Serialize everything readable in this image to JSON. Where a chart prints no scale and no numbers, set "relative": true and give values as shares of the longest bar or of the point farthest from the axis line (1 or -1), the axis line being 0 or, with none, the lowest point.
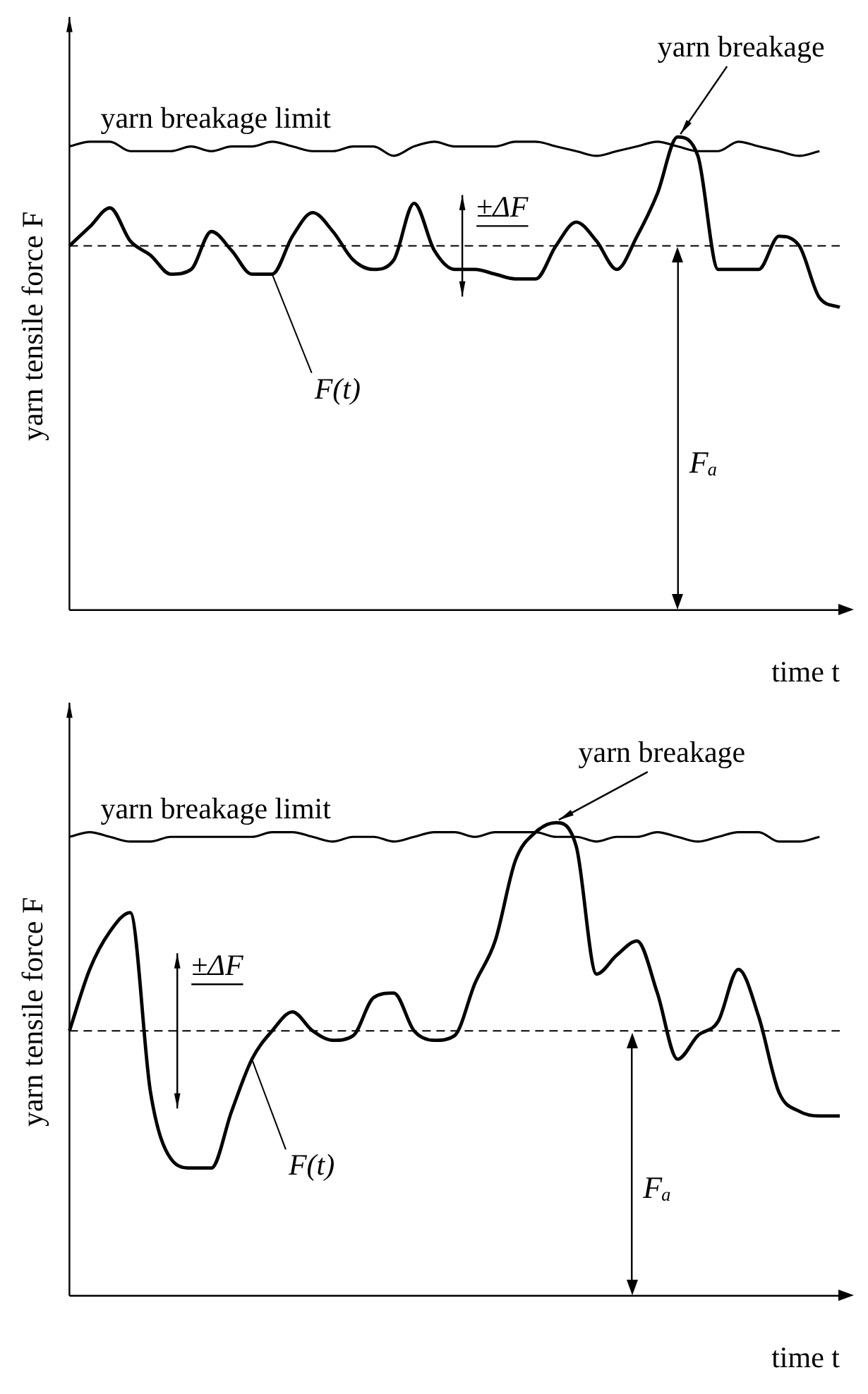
{
  "chart_data": [
    {
      "type": "line",
      "relative": true,
      "xlabel": "time t",
      "ylabel": "yarn tensile force F",
      "legend": false,
      "marker": "none",
      "grid": false,
      "categories": [
        null,
        null,
        null,
        null,
        null,
        null,
        null,
        null,
        null,
        null,
        null,
        null,
        null,
        null,
        null,
        null,
        null,
        null,
        null,
        null,
        null,
        null,
        null,
        null,
        null,
        null,
        null,
        null,
        null,
        null,
        null,
        null,
        null,
        null,
        null,
        null,
        null,
        null,
        null
      ],
      "series": [
        {
          "name": "yarn breakage limit",
          "color": "#000000",
          "values": [
            0.98,
            0.99,
            0.99,
            0.97,
            0.97,
            0.97,
            0.98,
            0.97,
            0.98,
            0.98,
            0.99,
            0.98,
            0.97,
            0.97,
            0.98,
            0.98,
            0.96,
            0.98,
            0.99,
            0.98,
            0.98,
            0.98,
            0.99,
            0.99,
            0.98,
            0.97,
            0.96,
            0.97,
            0.98,
            0.99,
            0.98,
            0.97,
            0.97,
            0.99,
            0.98,
            0.97,
            0.96,
            0.97,
            null
          ]
        },
        {
          "name": "F(t)",
          "color": "#000000",
          "values": [
            0.77,
            0.81,
            0.85,
            0.78,
            0.75,
            0.71,
            0.72,
            0.8,
            0.76,
            0.71,
            0.71,
            0.79,
            0.84,
            0.8,
            0.74,
            0.72,
            0.74,
            0.86,
            0.76,
            0.72,
            0.72,
            0.71,
            0.7,
            0.7,
            0.77,
            0.82,
            0.78,
            0.72,
            0.79,
            0.88,
            1,
            0.96,
            0.72,
            0.72,
            0.72,
            0.79,
            0.77,
            0.66,
            0.64
          ]
        }
      ],
      "ref_lines": [
        {
          "axis": "y",
          "value": 0.77,
          "line_style": "dashed"
        }
      ],
      "annotations": [
        "yarn breakage",
        "±ΔF",
        "Fₐ"
      ]
    },
    {
      "type": "line",
      "relative": true,
      "xlabel": "time t",
      "ylabel": "yarn tensile force F",
      "legend": false,
      "marker": "none",
      "grid": false,
      "categories": [
        null,
        null,
        null,
        null,
        null,
        null,
        null,
        null,
        null,
        null,
        null,
        null,
        null,
        null,
        null,
        null,
        null,
        null,
        null,
        null,
        null,
        null,
        null,
        null,
        null,
        null,
        null,
        null,
        null,
        null,
        null,
        null,
        null,
        null,
        null,
        null,
        null,
        null,
        null
      ],
      "series": [
        {
          "name": "yarn breakage limit",
          "color": "#000000",
          "values": [
            0.97,
            0.98,
            0.97,
            0.96,
            0.96,
            0.97,
            0.97,
            0.97,
            0.97,
            0.97,
            0.98,
            0.98,
            0.97,
            0.96,
            0.97,
            0.97,
            0.96,
            0.97,
            0.98,
            0.98,
            0.97,
            0.98,
            0.98,
            0.98,
            0.97,
            0.97,
            0.96,
            0.97,
            0.97,
            0.98,
            0.97,
            0.96,
            0.97,
            0.98,
            0.98,
            0.96,
            0.96,
            0.97,
            null
          ]
        },
        {
          "name": "F(t)",
          "color": "#000000",
          "values": [
            0.56,
            0.69,
            0.77,
            0.81,
            0.43,
            0.29,
            0.27,
            0.27,
            0.39,
            0.5,
            0.56,
            0.6,
            0.56,
            0.54,
            0.55,
            0.63,
            0.64,
            0.56,
            0.54,
            0.55,
            0.66,
            0.75,
            0.92,
            0.98,
            1,
            0.95,
            0.68,
            0.72,
            0.75,
            0.64,
            0.5,
            0.55,
            0.58,
            0.69,
            0.59,
            0.43,
            0.39,
            0.38,
            0.38
          ]
        }
      ],
      "ref_lines": [
        {
          "axis": "y",
          "value": 0.56,
          "line_style": "dashed"
        }
      ],
      "annotations": [
        "yarn breakage",
        "±ΔF",
        "Fₐ"
      ]
    }
  ]
}
